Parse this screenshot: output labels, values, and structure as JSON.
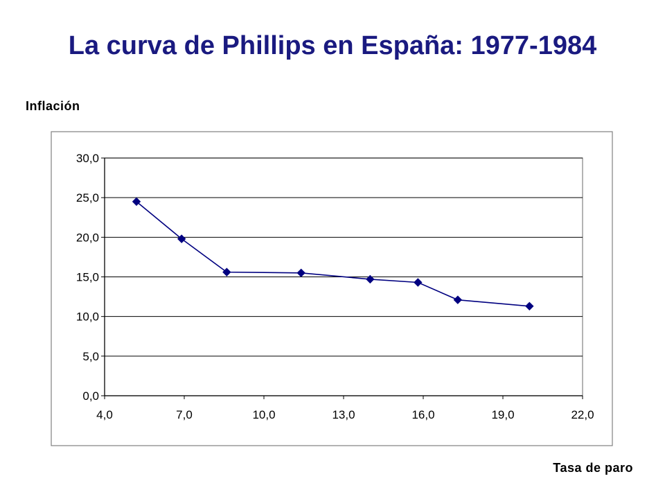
{
  "slide": {
    "title": "La curva de Phillips en España: 1977-1984",
    "y_caption": "Inflación",
    "x_caption": "Tasa de paro"
  },
  "colors": {
    "title": "#1a1a80",
    "series_line": "#000080",
    "gridline": "#000000",
    "frame": "#808080",
    "background": "#ffffff"
  },
  "chart_data": {
    "type": "line",
    "x_ticks": [
      "4,0",
      "7,0",
      "10,0",
      "13,0",
      "16,0",
      "19,0",
      "22,0"
    ],
    "y_ticks": [
      "0,0",
      "5,0",
      "10,0",
      "15,0",
      "20,0",
      "25,0",
      "30,0"
    ],
    "xlim": [
      4,
      22
    ],
    "ylim": [
      0,
      30
    ],
    "grid": "horizontal",
    "legend": "none",
    "series": [
      {
        "points": [
          {
            "x": 5.2,
            "y": 24.5
          },
          {
            "x": 6.9,
            "y": 19.8
          },
          {
            "x": 8.6,
            "y": 15.6
          },
          {
            "x": 11.4,
            "y": 15.5
          },
          {
            "x": 14.0,
            "y": 14.7
          },
          {
            "x": 15.8,
            "y": 14.3
          },
          {
            "x": 17.3,
            "y": 12.1
          },
          {
            "x": 20.0,
            "y": 11.3
          }
        ]
      }
    ]
  }
}
